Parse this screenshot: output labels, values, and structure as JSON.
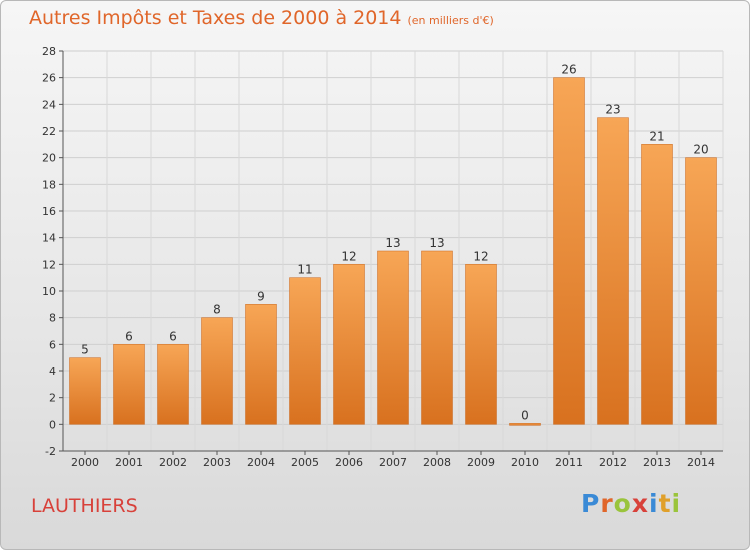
{
  "title": "Autres Impôts et Taxes de 2000 à 2014",
  "subtitle": "(en milliers d'€)",
  "commune": "LAUTHIERS",
  "logo": {
    "letters": [
      "P",
      "r",
      "o",
      "x",
      "i",
      "t",
      "i"
    ],
    "colors": [
      "#3a8ad6",
      "#e0662a",
      "#9ac43c",
      "#d8413a",
      "#3a8ad6",
      "#e0a02a",
      "#9ac43c"
    ]
  },
  "colors": {
    "bar_light": "#f7a656",
    "bar_dark": "#d8711f",
    "title": "#e0662a",
    "commune": "#d8413a"
  },
  "chart_data": {
    "type": "bar",
    "title": "Autres Impôts et Taxes de 2000 à 2014",
    "subtitle": "(en milliers d'€)",
    "categories": [
      "2000",
      "2001",
      "2002",
      "2003",
      "2004",
      "2005",
      "2006",
      "2007",
      "2008",
      "2009",
      "2010",
      "2011",
      "2012",
      "2013",
      "2014"
    ],
    "values": [
      5,
      6,
      6,
      8,
      9,
      11,
      12,
      13,
      13,
      12,
      0,
      26,
      23,
      21,
      20
    ],
    "ylim": [
      -2,
      28
    ],
    "yticks": [
      -2,
      0,
      2,
      4,
      6,
      8,
      10,
      12,
      14,
      16,
      18,
      20,
      22,
      24,
      26,
      28
    ],
    "grid": true,
    "legend": "none"
  }
}
